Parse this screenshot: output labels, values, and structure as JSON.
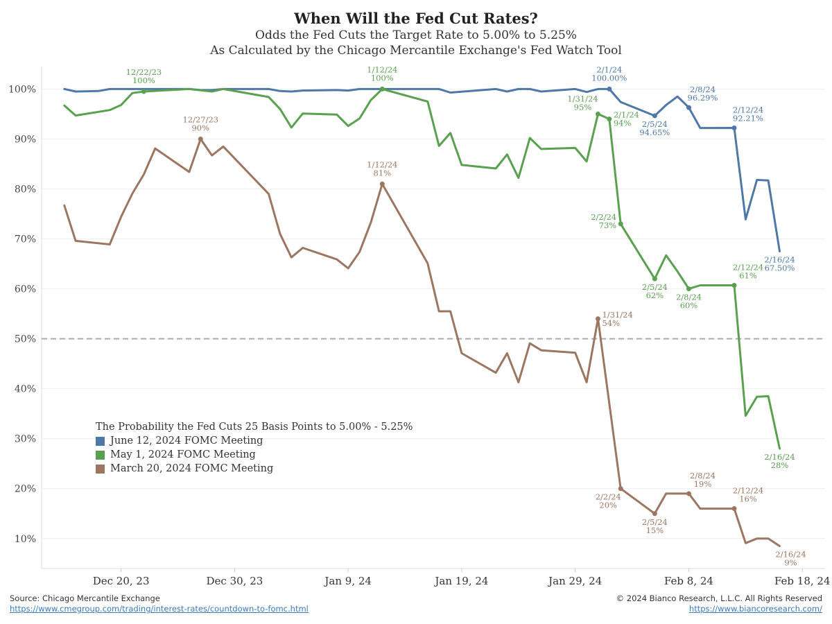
{
  "chart_data": {
    "type": "line",
    "title": "When Will the Fed Cut Rates?",
    "subtitle": "Odds the Fed Cuts the Target Rate to 5.00% to 5.25%",
    "subtitle2": "As Calculated by the Chicago Mercantile Exchange's Fed Watch Tool",
    "ylim": [
      0.04,
      1.045
    ],
    "y_ticks": [
      0.1,
      0.2,
      0.3,
      0.4,
      0.5,
      0.6,
      0.7,
      0.8,
      0.9,
      1.0
    ],
    "y_tick_labels": [
      "10%",
      "20%",
      "30%",
      "40%",
      "50%",
      "60%",
      "70%",
      "80%",
      "90%",
      "100%"
    ],
    "x_tick_dates": [
      "2023-12-20",
      "2023-12-30",
      "2024-01-09",
      "2024-01-19",
      "2024-01-29",
      "2024-02-08",
      "2024-02-18"
    ],
    "x_tick_labels": [
      "Dec 20, 23",
      "Dec 30, 23",
      "Jan 9, 24",
      "Jan 19, 24",
      "Jan 29, 24",
      "Feb 8, 24",
      "Feb 18, 24"
    ],
    "xlim": [
      "2023-12-13",
      "2024-02-20"
    ],
    "reference_line": {
      "y": 0.5,
      "style": "dashed",
      "color": "#aaaaaa"
    },
    "grid": {
      "horizontal": true,
      "vertical": false
    },
    "legend_placement": "bottom-left",
    "legend_title": "The Probability the Fed Cuts 25 Basis Points to 5.00% - 5.25%",
    "series": [
      {
        "name": "June 12, 2024 FOMC Meeting",
        "color": "#4e78a8",
        "points": [
          [
            "2023-12-15",
            1.0
          ],
          [
            "2023-12-16",
            0.995
          ],
          [
            "2023-12-18",
            0.996
          ],
          [
            "2023-12-19",
            1.0
          ],
          [
            "2023-12-22",
            1.0
          ],
          [
            "2023-12-26",
            1.0
          ],
          [
            "2023-12-27",
            0.998
          ],
          [
            "2023-12-28",
            0.998
          ],
          [
            "2023-12-29",
            1.0
          ],
          [
            "2024-01-02",
            1.0
          ],
          [
            "2024-01-03",
            0.996
          ],
          [
            "2024-01-04",
            0.995
          ],
          [
            "2024-01-05",
            0.997
          ],
          [
            "2024-01-08",
            0.998
          ],
          [
            "2024-01-09",
            0.997
          ],
          [
            "2024-01-10",
            1.0
          ],
          [
            "2024-01-11",
            1.0
          ],
          [
            "2024-01-12",
            1.0
          ],
          [
            "2024-01-16",
            1.0
          ],
          [
            "2024-01-17",
            1.0
          ],
          [
            "2024-01-18",
            0.993
          ],
          [
            "2024-01-22",
            1.0
          ],
          [
            "2024-01-23",
            0.995
          ],
          [
            "2024-01-24",
            1.0
          ],
          [
            "2024-01-25",
            1.0
          ],
          [
            "2024-01-26",
            0.995
          ],
          [
            "2024-01-29",
            1.0
          ],
          [
            "2024-01-30",
            0.994
          ],
          [
            "2024-01-31",
            1.0
          ],
          [
            "2024-02-01",
            1.0
          ],
          [
            "2024-02-02",
            0.974
          ],
          [
            "2024-02-05",
            0.9465
          ],
          [
            "2024-02-06",
            0.968
          ],
          [
            "2024-02-07",
            0.985
          ],
          [
            "2024-02-08",
            0.9629
          ],
          [
            "2024-02-09",
            0.922
          ],
          [
            "2024-02-12",
            0.9221
          ],
          [
            "2024-02-13",
            0.739
          ],
          [
            "2024-02-14",
            0.818
          ],
          [
            "2024-02-15",
            0.817
          ],
          [
            "2024-02-16",
            0.675
          ]
        ]
      },
      {
        "name": "May 1, 2024 FOMC Meeting",
        "color": "#59a14f",
        "points": [
          [
            "2023-12-15",
            0.967
          ],
          [
            "2023-12-16",
            0.947
          ],
          [
            "2023-12-19",
            0.958
          ],
          [
            "2023-12-20",
            0.968
          ],
          [
            "2023-12-21",
            0.992
          ],
          [
            "2023-12-22",
            0.995
          ],
          [
            "2023-12-26",
            1.0
          ],
          [
            "2023-12-28",
            0.995
          ],
          [
            "2023-12-29",
            1.0
          ],
          [
            "2024-01-02",
            0.984
          ],
          [
            "2024-01-03",
            0.96
          ],
          [
            "2024-01-04",
            0.923
          ],
          [
            "2024-01-05",
            0.951
          ],
          [
            "2024-01-08",
            0.949
          ],
          [
            "2024-01-09",
            0.926
          ],
          [
            "2024-01-10",
            0.941
          ],
          [
            "2024-01-11",
            0.978
          ],
          [
            "2024-01-12",
            1.0
          ],
          [
            "2024-01-16",
            0.975
          ],
          [
            "2024-01-17",
            0.886
          ],
          [
            "2024-01-18",
            0.912
          ],
          [
            "2024-01-19",
            0.848
          ],
          [
            "2024-01-22",
            0.841
          ],
          [
            "2024-01-23",
            0.869
          ],
          [
            "2024-01-24",
            0.822
          ],
          [
            "2024-01-25",
            0.902
          ],
          [
            "2024-01-26",
            0.88
          ],
          [
            "2024-01-29",
            0.882
          ],
          [
            "2024-01-30",
            0.855
          ],
          [
            "2024-01-31",
            0.95
          ],
          [
            "2024-02-01",
            0.94
          ],
          [
            "2024-02-02",
            0.73
          ],
          [
            "2024-02-05",
            0.62
          ],
          [
            "2024-02-06",
            0.667
          ],
          [
            "2024-02-07",
            0.635
          ],
          [
            "2024-02-08",
            0.6
          ],
          [
            "2024-02-09",
            0.607
          ],
          [
            "2024-02-12",
            0.607
          ],
          [
            "2024-02-13",
            0.346
          ],
          [
            "2024-02-14",
            0.384
          ],
          [
            "2024-02-15",
            0.385
          ],
          [
            "2024-02-16",
            0.28
          ]
        ]
      },
      {
        "name": "March 20, 2024 FOMC Meeting",
        "color": "#9c7661",
        "points": [
          [
            "2023-12-15",
            0.767
          ],
          [
            "2023-12-16",
            0.696
          ],
          [
            "2023-12-19",
            0.689
          ],
          [
            "2023-12-20",
            0.744
          ],
          [
            "2023-12-21",
            0.791
          ],
          [
            "2023-12-22",
            0.829
          ],
          [
            "2023-12-23",
            0.881
          ],
          [
            "2023-12-26",
            0.834
          ],
          [
            "2023-12-27",
            0.9
          ],
          [
            "2023-12-28",
            0.867
          ],
          [
            "2023-12-29",
            0.885
          ],
          [
            "2024-01-02",
            0.79
          ],
          [
            "2024-01-03",
            0.71
          ],
          [
            "2024-01-04",
            0.663
          ],
          [
            "2024-01-05",
            0.682
          ],
          [
            "2024-01-08",
            0.659
          ],
          [
            "2024-01-09",
            0.641
          ],
          [
            "2024-01-10",
            0.674
          ],
          [
            "2024-01-11",
            0.733
          ],
          [
            "2024-01-12",
            0.81
          ],
          [
            "2024-01-16",
            0.651
          ],
          [
            "2024-01-17",
            0.555
          ],
          [
            "2024-01-18",
            0.555
          ],
          [
            "2024-01-19",
            0.471
          ],
          [
            "2024-01-22",
            0.432
          ],
          [
            "2024-01-23",
            0.471
          ],
          [
            "2024-01-24",
            0.413
          ],
          [
            "2024-01-25",
            0.491
          ],
          [
            "2024-01-26",
            0.477
          ],
          [
            "2024-01-29",
            0.472
          ],
          [
            "2024-01-30",
            0.413
          ],
          [
            "2024-01-31",
            0.54
          ],
          [
            "2024-02-02",
            0.2
          ],
          [
            "2024-02-05",
            0.15
          ],
          [
            "2024-02-06",
            0.19
          ],
          [
            "2024-02-08",
            0.19
          ],
          [
            "2024-02-09",
            0.16
          ],
          [
            "2024-02-12",
            0.16
          ],
          [
            "2024-02-13",
            0.091
          ],
          [
            "2024-02-14",
            0.1
          ],
          [
            "2024-02-15",
            0.1
          ],
          [
            "2024-02-16",
            0.085
          ]
        ]
      }
    ],
    "annotations": [
      {
        "series": 0,
        "date": "2024-02-01",
        "lines": [
          "2/1/24",
          "100.00%"
        ],
        "pos": "above",
        "marker": true
      },
      {
        "series": 0,
        "date": "2024-02-05",
        "lines": [
          "2/5/24",
          "94.65%"
        ],
        "pos": "below",
        "marker": true
      },
      {
        "series": 0,
        "date": "2024-02-08",
        "lines": [
          "2/8/24",
          "96.29%"
        ],
        "pos": "above-right",
        "marker": true
      },
      {
        "series": 0,
        "date": "2024-02-12",
        "lines": [
          "2/12/24",
          "92.21%"
        ],
        "pos": "above-right",
        "marker": true
      },
      {
        "series": 0,
        "date": "2024-02-16",
        "lines": [
          "2/16/24",
          "67.50%"
        ],
        "pos": "below",
        "marker": false
      },
      {
        "series": 1,
        "date": "2023-12-22",
        "lines": [
          "12/22/23",
          "100%"
        ],
        "pos": "above",
        "marker": true
      },
      {
        "series": 1,
        "date": "2024-01-12",
        "lines": [
          "1/12/24",
          "100%"
        ],
        "pos": "above",
        "marker": true
      },
      {
        "series": 1,
        "date": "2024-01-31",
        "lines": [
          "1/31/24",
          "95%"
        ],
        "pos": "above-left",
        "marker": true
      },
      {
        "series": 1,
        "date": "2024-02-01",
        "lines": [
          "2/1/24",
          "94%"
        ],
        "pos": "right",
        "marker": true
      },
      {
        "series": 1,
        "date": "2024-02-02",
        "lines": [
          "2/2/24",
          "73%"
        ],
        "pos": "left",
        "marker": true
      },
      {
        "series": 1,
        "date": "2024-02-05",
        "lines": [
          "2/5/24",
          "62%"
        ],
        "pos": "below",
        "marker": true
      },
      {
        "series": 1,
        "date": "2024-02-08",
        "lines": [
          "2/8/24",
          "60%"
        ],
        "pos": "below",
        "marker": true
      },
      {
        "series": 1,
        "date": "2024-02-12",
        "lines": [
          "2/12/24",
          "61%"
        ],
        "pos": "above-right",
        "marker": true
      },
      {
        "series": 1,
        "date": "2024-02-16",
        "lines": [
          "2/16/24",
          "28%"
        ],
        "pos": "below",
        "marker": false
      },
      {
        "series": 2,
        "date": "2023-12-27",
        "lines": [
          "12/27/23",
          "90%"
        ],
        "pos": "above",
        "marker": true
      },
      {
        "series": 2,
        "date": "2024-01-12",
        "lines": [
          "1/12/24",
          "81%"
        ],
        "pos": "above",
        "marker": true
      },
      {
        "series": 2,
        "date": "2024-01-31",
        "lines": [
          "1/31/24",
          "54%"
        ],
        "pos": "right",
        "marker": true
      },
      {
        "series": 2,
        "date": "2024-02-02",
        "lines": [
          "2/2/24",
          "20%"
        ],
        "pos": "below-left",
        "marker": true
      },
      {
        "series": 2,
        "date": "2024-02-05",
        "lines": [
          "2/5/24",
          "15%"
        ],
        "pos": "below",
        "marker": true
      },
      {
        "series": 2,
        "date": "2024-02-08",
        "lines": [
          "2/8/24",
          "19%"
        ],
        "pos": "above-right",
        "marker": true
      },
      {
        "series": 2,
        "date": "2024-02-12",
        "lines": [
          "2/12/24",
          "16%"
        ],
        "pos": "above-right",
        "marker": true
      },
      {
        "series": 2,
        "date": "2024-02-16",
        "lines": [
          "2/16/24",
          "9%"
        ],
        "pos": "below-right",
        "marker": false
      }
    ]
  },
  "footer": {
    "source": "Source: Chicago Mercantile Exchange",
    "source_link": "https://www.cmegroup.com/trading/interest-rates/countdown-to-fomc.html",
    "copyright": "© 2024 Bianco Research, L.L.C. All Rights Reserved",
    "copyright_link": "https://www.biancoresearch.com/"
  }
}
